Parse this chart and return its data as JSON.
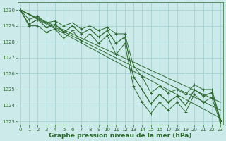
{
  "xlabel": "Graphe pression niveau de la mer (hPa)",
  "x": [
    0,
    1,
    2,
    3,
    4,
    5,
    6,
    7,
    8,
    9,
    10,
    11,
    12,
    13,
    14,
    15,
    16,
    17,
    18,
    19,
    20,
    21,
    22,
    23
  ],
  "line_main": [
    1030.0,
    1029.1,
    1029.4,
    1028.9,
    1029.1,
    1028.6,
    1029.0,
    1028.5,
    1028.8,
    1028.3,
    1028.7,
    1027.9,
    1028.3,
    1025.8,
    1025.0,
    1024.1,
    1024.7,
    1024.2,
    1024.6,
    1024.0,
    1025.0,
    1024.6,
    1024.8,
    1023.0
  ],
  "line_max": [
    1030.0,
    1029.4,
    1029.6,
    1029.2,
    1029.3,
    1029.0,
    1029.2,
    1028.8,
    1029.0,
    1028.7,
    1028.9,
    1028.5,
    1028.5,
    1026.5,
    1025.8,
    1024.8,
    1025.2,
    1024.8,
    1025.0,
    1024.7,
    1025.3,
    1025.0,
    1025.0,
    1023.1
  ],
  "line_min": [
    1030.0,
    1029.0,
    1029.0,
    1028.6,
    1028.8,
    1028.2,
    1028.7,
    1028.0,
    1028.5,
    1027.9,
    1028.4,
    1027.2,
    1027.9,
    1025.2,
    1024.2,
    1023.5,
    1024.2,
    1023.7,
    1024.2,
    1023.6,
    1024.7,
    1024.2,
    1024.5,
    1022.9
  ],
  "trend_line1": [
    1030.0,
    1023.2
  ],
  "trend_line2": [
    1030.0,
    1023.7
  ],
  "trend_line3": [
    1030.0,
    1024.2
  ],
  "bg_color": "#cceaea",
  "line_color": "#2d6a2d",
  "grid_color": "#9ecece",
  "ylim": [
    1022.8,
    1030.5
  ],
  "yticks": [
    1023,
    1024,
    1025,
    1026,
    1027,
    1028,
    1029,
    1030
  ],
  "xticks": [
    0,
    1,
    2,
    3,
    4,
    5,
    6,
    7,
    8,
    9,
    10,
    11,
    12,
    13,
    14,
    15,
    16,
    17,
    18,
    19,
    20,
    21,
    22,
    23
  ],
  "tick_fontsize": 5.0,
  "label_fontsize": 6.5,
  "marker": "+"
}
